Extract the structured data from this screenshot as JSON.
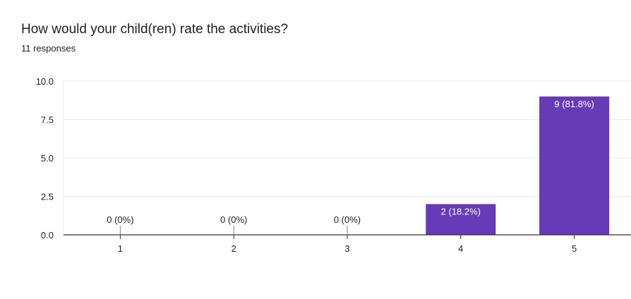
{
  "header": {
    "title": "How would your child(ren) rate the activities?",
    "responses": "11 responses"
  },
  "colors": {
    "bar": "#673ab7",
    "axis": "#333333",
    "grid": "#ebebeb",
    "text": "#202124",
    "bar_label": "#ffffff"
  },
  "chart_data": {
    "type": "bar",
    "title": "How would your child(ren) rate the activities?",
    "xlabel": "",
    "ylabel": "",
    "categories": [
      "1",
      "2",
      "3",
      "4",
      "5"
    ],
    "values": [
      0,
      0,
      0,
      2,
      9
    ],
    "data_labels": [
      "0 (0%)",
      "0 (0%)",
      "0 (0%)",
      "2 (18.2%)",
      "9 (81.8%)"
    ],
    "ylim": [
      0,
      10
    ],
    "yticks": [
      "0.0",
      "2.5",
      "5.0",
      "7.5",
      "10.0"
    ],
    "ytick_values": [
      0,
      2.5,
      5,
      7.5,
      10
    ],
    "grid": true,
    "legend": "none"
  }
}
